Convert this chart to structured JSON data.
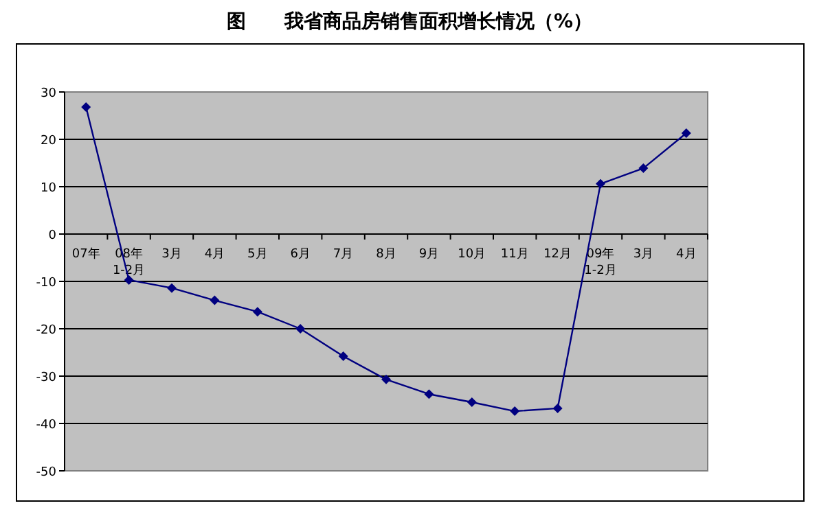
{
  "chart_data": {
    "type": "line",
    "title": "图　　我省商品房销售面积增长情况（%）",
    "categories": [
      "07年",
      "08年 1-2月",
      "3月",
      "4月",
      "5月",
      "6月",
      "7月",
      "8月",
      "9月",
      "10月",
      "11月",
      "12月",
      "09年 1-2月",
      "3月",
      "4月"
    ],
    "series": [
      {
        "color": "#000080",
        "values": [
          26.8,
          -9.7,
          -11.4,
          -14,
          -16.4,
          -20,
          -25.8,
          -30.7,
          -33.8,
          -35.5,
          -37.4,
          -36.8,
          10.6,
          13.9,
          21.3
        ]
      }
    ],
    "ylim": [
      -50,
      30
    ],
    "yticks": [
      -50,
      -40,
      -30,
      -20,
      -10,
      0,
      10,
      20,
      30
    ],
    "grid": "y",
    "marker": "diamond",
    "line_style": "solid"
  }
}
